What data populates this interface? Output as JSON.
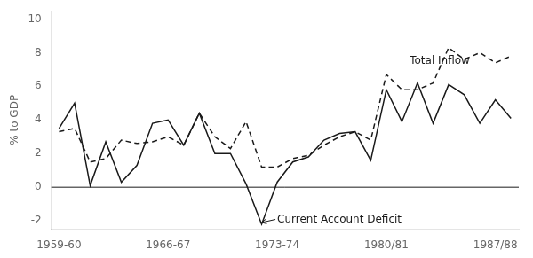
{
  "chart_data": {
    "type": "line",
    "ylabel": "% to GDP",
    "categories": [
      "1959-60",
      null,
      null,
      null,
      null,
      null,
      null,
      "1966-67",
      null,
      null,
      null,
      null,
      null,
      null,
      "1973-74",
      null,
      null,
      null,
      null,
      null,
      null,
      "1980/81",
      null,
      null,
      null,
      null,
      null,
      null,
      "1987/88",
      null
    ],
    "series": [
      {
        "values": [
          3.5,
          5.0,
          0.1,
          2.7,
          0.3,
          1.3,
          3.8,
          4.0,
          2.5,
          4.4,
          2.0,
          2.0,
          0.2,
          -2.2,
          0.3,
          1.5,
          1.8,
          2.8,
          3.2,
          3.3,
          1.6,
          5.8,
          3.9,
          6.2,
          3.8,
          6.1,
          5.5,
          3.8,
          5.2,
          4.1
        ],
        "color": "#1a1a1a",
        "line_style": "solid"
      },
      {
        "values": [
          3.3,
          3.5,
          1.5,
          1.7,
          2.8,
          2.6,
          2.7,
          3.0,
          2.5,
          4.4,
          3.0,
          2.3,
          3.9,
          1.2,
          1.2,
          1.7,
          1.9,
          2.5,
          3.0,
          3.3,
          2.8,
          6.7,
          5.8,
          5.8,
          6.2,
          8.3,
          7.6,
          8.0,
          7.4,
          7.8
        ],
        "color": "#1a1a1a",
        "line_style": "dashed"
      }
    ],
    "ylim": [
      -2.5,
      10.5
    ],
    "yticks": [
      -2,
      0,
      2,
      4,
      6,
      8,
      10
    ],
    "grid": false,
    "color": "#1a1a1a",
    "annotations": [
      {
        "text": "Total Inflow",
        "x": 22.5,
        "y": 7.2
      },
      {
        "text": "Current Account Deficit",
        "x": 14.0,
        "y": -1.6,
        "arrow_to": [
          13.0,
          -2.1
        ]
      }
    ]
  }
}
